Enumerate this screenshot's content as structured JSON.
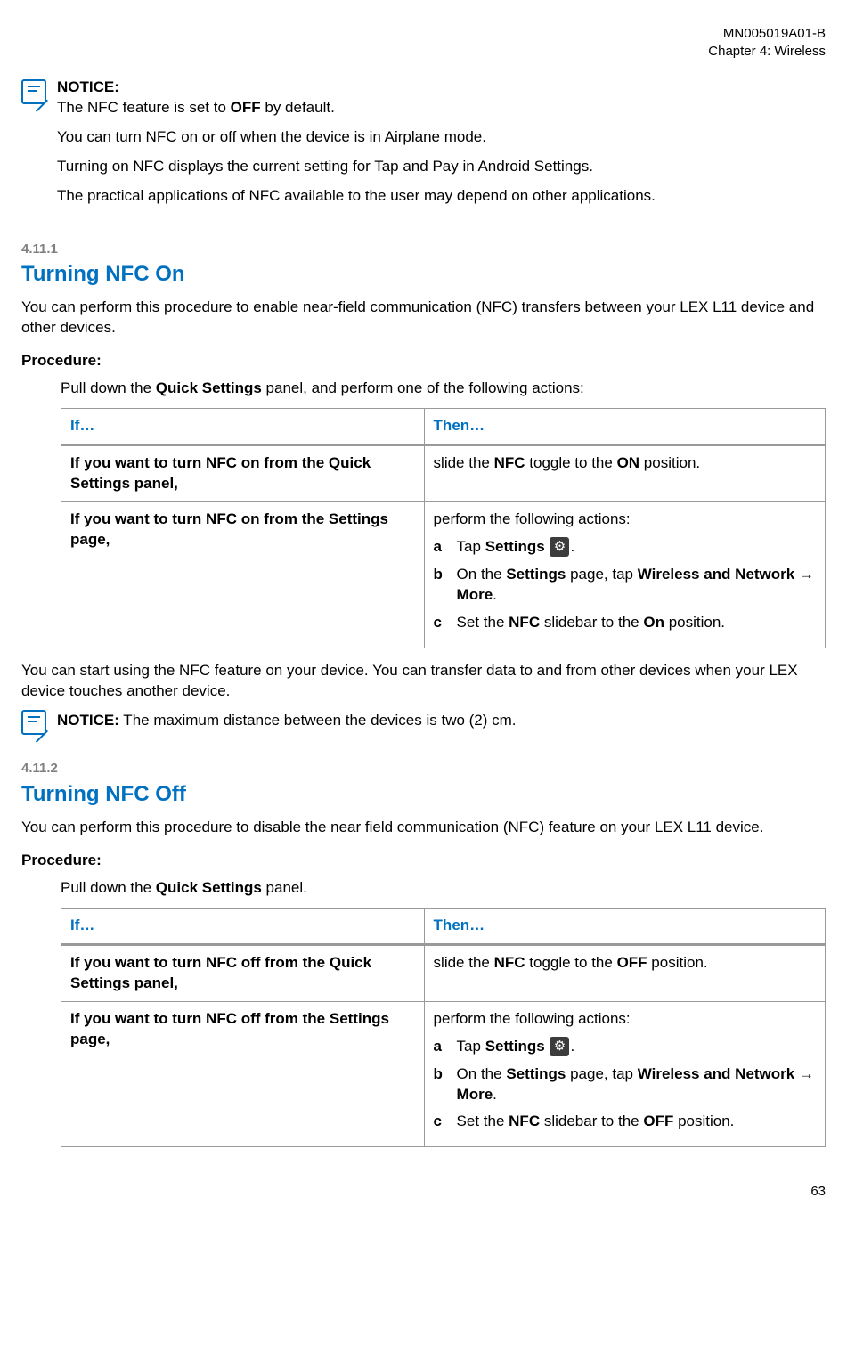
{
  "header": {
    "doc_id": "MN005019A01-B",
    "chapter": "Chapter 4:  Wireless"
  },
  "notice_top": {
    "label": "NOTICE:",
    "lines": [
      "The NFC feature is set to <b>OFF</b> by default.",
      "You can turn NFC on or off when the device is in Airplane mode.",
      "Turning on NFC displays the current setting for Tap and Pay in Android Settings.",
      "The practical applications of NFC available to the user may depend on other applications."
    ]
  },
  "sec1": {
    "num": "4.11.1",
    "title": "Turning NFC On",
    "intro": "You can perform this procedure to enable near-field communication (NFC) transfers between your LEX L11 device and other devices.",
    "proc_label": "Procedure:",
    "step": "Pull down the <b>Quick Settings</b> panel, and perform one of the following actions:",
    "table": {
      "h1": "If…",
      "h2": "Then…",
      "r1c1": "If you want to turn NFC on from the Quick Settings panel,",
      "r1c2": "slide the <b>NFC</b> toggle to the <b>ON</b> position.",
      "r2c1": "If you want to turn NFC on from the Settings page,",
      "r2c2_lead": "perform the following actions:",
      "r2_sub": [
        "Tap <b>Settings</b> {ICON}.",
        "On the <b>Settings</b> page, tap <b>Wireless and Network</b> → <b>More</b>.",
        "Set the <b>NFC</b> slidebar to the <b>On</b> position."
      ]
    },
    "after": "You can start using the NFC feature on your device. You can transfer data to and from other devices when your LEX device touches another device.",
    "notice2": "<b>NOTICE:</b> The maximum distance between the devices is two (2) cm."
  },
  "sec2": {
    "num": "4.11.2",
    "title": "Turning NFC Off",
    "intro": "You can perform this procedure to disable the near field communication (NFC) feature on your LEX L11 device.",
    "proc_label": "Procedure:",
    "step": "Pull down the <b>Quick Settings</b> panel.",
    "table": {
      "h1": "If…",
      "h2": "Then…",
      "r1c1": "If you want to turn NFC off from the Quick Settings panel,",
      "r1c2": "slide the <b>NFC</b> toggle to the <b>OFF</b> position.",
      "r2c1": "If you want to turn NFC off from the Settings page,",
      "r2c2_lead": "perform the following actions:",
      "r2_sub": [
        "Tap <b>Settings</b> {ICON}.",
        "On the <b>Settings</b> page, tap <b>Wireless and Network</b> → <b>More</b>.",
        "Set the <b>NFC</b> slidebar to the <b>OFF</b> position."
      ]
    }
  },
  "page_num": "63",
  "colors": {
    "heading": "#0070c0",
    "muted": "#808080",
    "border": "#9a9a9a"
  }
}
